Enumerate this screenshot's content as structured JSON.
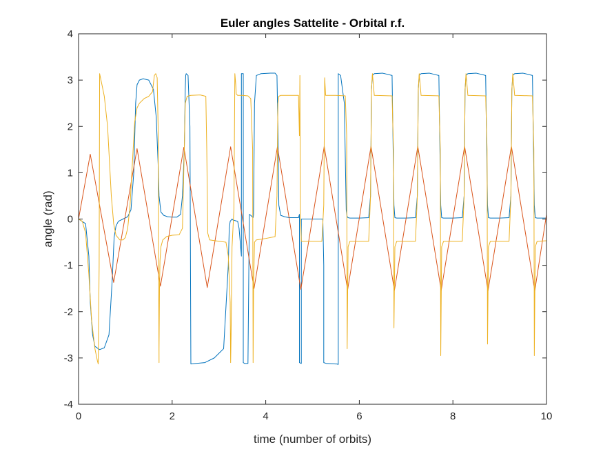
{
  "chart_data": {
    "type": "line",
    "title": "Euler angles Sattelite - Orbital r.f.",
    "xlabel": "time (number of orbits)",
    "ylabel": "angle (rad)",
    "xlim": [
      0,
      10
    ],
    "ylim": [
      -4,
      4
    ],
    "xticks": [
      0,
      2,
      4,
      6,
      8,
      10
    ],
    "yticks": [
      -4,
      -3,
      -2,
      -1,
      0,
      1,
      2,
      3,
      4
    ],
    "grid": false,
    "legend": "none",
    "series": [
      {
        "color": "#0072BD",
        "x": [
          0,
          0.15,
          0.22,
          0.25,
          0.3,
          0.35,
          0.45,
          0.55,
          0.65,
          0.72,
          0.76,
          0.8,
          0.85,
          0.95,
          1.05,
          1.12,
          1.18,
          1.22,
          1.25,
          1.3,
          1.38,
          1.5,
          1.6,
          1.66,
          1.7,
          1.72,
          1.76,
          1.82,
          1.9,
          2.0,
          2.1,
          2.18,
          2.22,
          2.26,
          2.28,
          2.29,
          2.3,
          2.34,
          2.38,
          2.4,
          2.4,
          2.5,
          2.7,
          2.9,
          3.1,
          3.2,
          3.22,
          3.24,
          3.28,
          3.3,
          3.4,
          3.43,
          3.48,
          3.48,
          3.52,
          3.52,
          3.55,
          3.62,
          3.65,
          3.68,
          3.7,
          3.72,
          3.73,
          3.74,
          3.76,
          3.8,
          3.9,
          4.1,
          4.2,
          4.24,
          4.26,
          4.28,
          4.32,
          4.4,
          4.5,
          4.6,
          4.7,
          4.72,
          4.72,
          4.76,
          4.76,
          4.78,
          5.0,
          5.22,
          5.24,
          5.24,
          5.3,
          5.5,
          5.52,
          5.55,
          5.55,
          5.6,
          5.68,
          5.72,
          5.74,
          5.76,
          5.8,
          6.0,
          6.2,
          6.24,
          6.26,
          6.28,
          6.32,
          6.5,
          6.7,
          6.74,
          6.76,
          6.8,
          7.0,
          7.2,
          7.24,
          7.26,
          7.28,
          7.32,
          7.5,
          7.7,
          7.74,
          7.76,
          7.8,
          8.0,
          8.2,
          8.24,
          8.26,
          8.28,
          8.32,
          8.5,
          8.7,
          8.74,
          8.76,
          8.8,
          9.0,
          9.2,
          9.24,
          9.26,
          9.28,
          9.32,
          9.5,
          9.7,
          9.74,
          9.76,
          9.8,
          10.0
        ],
        "y": [
          0,
          -0.1,
          -0.8,
          -1.8,
          -2.5,
          -2.75,
          -2.82,
          -2.78,
          -2.5,
          -1.3,
          -0.4,
          -0.15,
          -0.05,
          0,
          0.05,
          0.2,
          1.0,
          2.5,
          2.9,
          3.0,
          3.03,
          3.0,
          2.8,
          2.2,
          1.2,
          0.5,
          0.15,
          0.08,
          0.05,
          0.04,
          0.04,
          0.1,
          0.5,
          1.5,
          2.8,
          3.1,
          3.14,
          3.1,
          2.0,
          -3.1,
          -3.13,
          -3.12,
          -3.1,
          -3.0,
          -2.8,
          -1.0,
          -0.2,
          -0.05,
          0,
          -0.02,
          -0.05,
          -0.2,
          -0.8,
          3.14,
          3.14,
          -3.1,
          -3.12,
          -3.12,
          0.1,
          0.08,
          0.06,
          0.04,
          0.03,
          0.1,
          2.5,
          3.1,
          3.14,
          3.15,
          3.15,
          3.1,
          2.0,
          0.3,
          0.08,
          0.05,
          0.03,
          0.03,
          0.03,
          0.1,
          -3.1,
          -3.12,
          0,
          0,
          0,
          0,
          -1.0,
          -3.1,
          -3.12,
          -3.13,
          -3.13,
          -3.14,
          3.14,
          3.1,
          2.5,
          0.2,
          0.05,
          0.03,
          0.02,
          0.02,
          0.03,
          0.5,
          2.8,
          3.1,
          3.14,
          3.15,
          3.1,
          0.3,
          0.03,
          0.02,
          0.02,
          0.03,
          0.5,
          2.8,
          3.1,
          3.14,
          3.15,
          3.1,
          0.3,
          0.03,
          0.02,
          0.02,
          0.03,
          0.5,
          2.8,
          3.1,
          3.14,
          3.15,
          3.1,
          0.3,
          0.03,
          0.02,
          0.02,
          0.03,
          0.5,
          2.8,
          3.1,
          3.14,
          3.15,
          3.1,
          0.3,
          0.03,
          0.02,
          0.02
        ]
      },
      {
        "color": "#D95319",
        "x": [
          0,
          0.25,
          0.75,
          1.25,
          1.75,
          2.25,
          2.75,
          3.25,
          3.75,
          4.25,
          4.75,
          5.25,
          5.75,
          6.25,
          6.75,
          7.25,
          7.75,
          8.25,
          8.75,
          9.25,
          9.75,
          10.0
        ],
        "y": [
          0,
          1.4,
          -1.37,
          1.52,
          -1.45,
          1.55,
          -1.48,
          1.56,
          -1.5,
          1.56,
          -1.52,
          1.57,
          -1.53,
          1.57,
          -1.54,
          1.57,
          -1.54,
          1.57,
          -1.55,
          1.57,
          -1.55,
          0.1
        ]
      },
      {
        "color": "#EDB120",
        "x": [
          0,
          0.08,
          0.15,
          0.22,
          0.28,
          0.35,
          0.4,
          0.42,
          0.44,
          0.45,
          0.45,
          0.5,
          0.55,
          0.62,
          0.7,
          0.75,
          0.8,
          0.88,
          0.95,
          1.0,
          1.05,
          1.1,
          1.15,
          1.2,
          1.25,
          1.3,
          1.4,
          1.5,
          1.58,
          1.62,
          1.65,
          1.68,
          1.7,
          1.71,
          1.72,
          1.72,
          1.73,
          1.74,
          1.76,
          1.8,
          1.88,
          2.0,
          2.15,
          2.22,
          2.26,
          2.28,
          2.32,
          2.4,
          2.6,
          2.72,
          2.74,
          2.76,
          2.8,
          3.0,
          3.15,
          3.2,
          3.24,
          3.25,
          3.26,
          3.28,
          3.32,
          3.34,
          3.36,
          3.37,
          3.4,
          3.5,
          3.62,
          3.68,
          3.72,
          3.73,
          3.74,
          3.76,
          3.8,
          4.0,
          4.2,
          4.24,
          4.26,
          4.28,
          4.32,
          4.5,
          4.7,
          4.72,
          4.73,
          4.74,
          4.76,
          4.8,
          5.2,
          5.24,
          5.26,
          5.28,
          5.5,
          5.7,
          5.73,
          5.74,
          5.76,
          5.8,
          6.2,
          6.24,
          6.26,
          6.28,
          6.32,
          6.7,
          6.73,
          6.74,
          6.76,
          6.8,
          7.2,
          7.24,
          7.26,
          7.28,
          7.32,
          7.7,
          7.73,
          7.74,
          7.76,
          7.8,
          8.2,
          8.24,
          8.26,
          8.28,
          8.32,
          8.7,
          8.73,
          8.74,
          8.76,
          8.8,
          9.2,
          9.24,
          9.26,
          9.28,
          9.32,
          9.7,
          9.73,
          9.74,
          9.76,
          9.8,
          10.0
        ],
        "y": [
          0,
          -0.05,
          -0.3,
          -1.2,
          -2.2,
          -2.8,
          -3.05,
          -3.13,
          -1.0,
          3.14,
          3.14,
          2.9,
          2.65,
          2.0,
          0.5,
          -0.1,
          -0.35,
          -0.45,
          -0.45,
          -0.4,
          -0.2,
          0.3,
          1.2,
          2.1,
          2.4,
          2.5,
          2.6,
          2.65,
          2.75,
          3.1,
          3.14,
          3.05,
          2.0,
          -1.0,
          -3.1,
          -2.8,
          -1.5,
          -0.9,
          -0.6,
          -0.45,
          -0.38,
          -0.35,
          -0.34,
          -0.2,
          1.5,
          2.5,
          2.65,
          2.67,
          2.68,
          2.65,
          1.5,
          -0.3,
          -0.45,
          -0.48,
          -0.5,
          -0.8,
          -1.8,
          -3.1,
          -2.5,
          -0.6,
          0.2,
          3.14,
          2.9,
          2.7,
          2.67,
          2.67,
          2.66,
          2.6,
          1.5,
          -3.1,
          -1.5,
          -0.5,
          -0.45,
          -0.42,
          -0.38,
          0.5,
          2.5,
          2.65,
          2.67,
          2.67,
          2.67,
          1.8,
          3.1,
          0.2,
          -0.48,
          -0.48,
          -0.48,
          0.3,
          3.05,
          2.67,
          2.67,
          2.66,
          1.8,
          -2.8,
          -0.6,
          -0.48,
          -0.48,
          0.5,
          2.8,
          3.14,
          2.67,
          2.66,
          1.5,
          -2.35,
          -0.6,
          -0.48,
          -0.48,
          0.5,
          2.8,
          3.14,
          2.67,
          2.66,
          1.5,
          -2.95,
          -0.6,
          -0.48,
          -0.48,
          0.5,
          2.8,
          3.14,
          2.67,
          2.66,
          1.5,
          -2.7,
          -0.6,
          -0.48,
          -0.48,
          0.5,
          2.8,
          3.14,
          2.67,
          2.66,
          1.5,
          -2.95,
          -0.6,
          -0.48,
          -0.47
        ]
      }
    ]
  }
}
